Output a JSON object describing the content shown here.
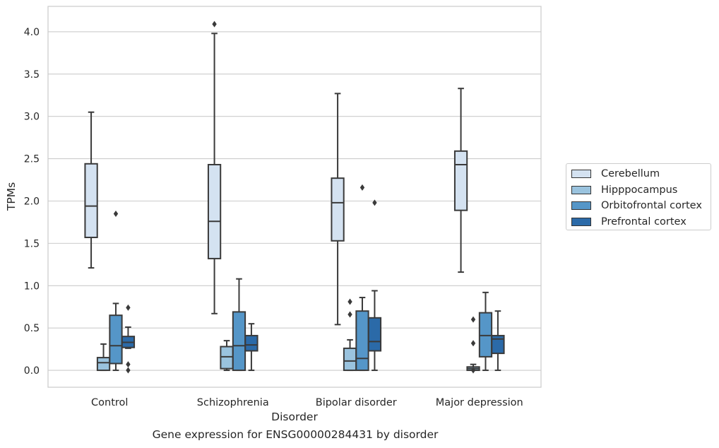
{
  "footer_title": "Gene expression for ENSG00000284431 by disorder",
  "chart_data": {
    "type": "box",
    "xlabel": "Disorder",
    "ylabel": "TPMs",
    "ylim": [
      -0.2,
      4.3
    ],
    "yticks": [
      "0.0",
      "0.5",
      "1.0",
      "1.5",
      "2.0",
      "2.5",
      "3.0",
      "3.5",
      "4.0"
    ],
    "grid": "horizontal",
    "legend_position": "right",
    "categories": [
      "Control",
      "Schizophrenia",
      "Bipolar disorder",
      "Major depression"
    ],
    "series": [
      {
        "name": "Cerebellum",
        "color": "#d4e2f1",
        "boxes": [
          {
            "q1": 1.57,
            "median": 1.94,
            "q3": 2.44,
            "whisker_low": 1.21,
            "whisker_high": 3.05,
            "outliers": []
          },
          {
            "q1": 1.32,
            "median": 1.76,
            "q3": 2.43,
            "whisker_low": 0.67,
            "whisker_high": 3.98,
            "outliers": [
              4.09
            ]
          },
          {
            "q1": 1.53,
            "median": 1.98,
            "q3": 2.27,
            "whisker_low": 0.54,
            "whisker_high": 3.27,
            "outliers": []
          },
          {
            "q1": 1.89,
            "median": 2.43,
            "q3": 2.59,
            "whisker_low": 1.16,
            "whisker_high": 3.33,
            "outliers": []
          }
        ]
      },
      {
        "name": "Hipppocampus",
        "color": "#9ac3de",
        "boxes": [
          {
            "q1": 0.0,
            "median": 0.09,
            "q3": 0.15,
            "whisker_low": 0.0,
            "whisker_high": 0.31,
            "outliers": []
          },
          {
            "q1": 0.02,
            "median": 0.16,
            "q3": 0.28,
            "whisker_low": 0.0,
            "whisker_high": 0.35,
            "outliers": []
          },
          {
            "q1": 0.0,
            "median": 0.11,
            "q3": 0.26,
            "whisker_low": 0.0,
            "whisker_high": 0.36,
            "outliers": [
              0.66,
              0.81
            ]
          },
          {
            "q1": 0.0,
            "median": 0.02,
            "q3": 0.04,
            "whisker_low": 0.0,
            "whisker_high": 0.07,
            "outliers": [
              0.0,
              0.32,
              0.6
            ]
          }
        ]
      },
      {
        "name": "Orbitofrontal cortex",
        "color": "#5596c8",
        "boxes": [
          {
            "q1": 0.08,
            "median": 0.29,
            "q3": 0.65,
            "whisker_low": 0.0,
            "whisker_high": 0.79,
            "outliers": [
              1.85
            ]
          },
          {
            "q1": 0.0,
            "median": 0.29,
            "q3": 0.69,
            "whisker_low": 0.0,
            "whisker_high": 1.08,
            "outliers": []
          },
          {
            "q1": 0.0,
            "median": 0.14,
            "q3": 0.7,
            "whisker_low": 0.0,
            "whisker_high": 0.86,
            "outliers": [
              2.16
            ]
          },
          {
            "q1": 0.16,
            "median": 0.41,
            "q3": 0.68,
            "whisker_low": 0.0,
            "whisker_high": 0.92,
            "outliers": []
          }
        ]
      },
      {
        "name": "Prefrontal cortex",
        "color": "#2b6aa8",
        "boxes": [
          {
            "q1": 0.27,
            "median": 0.33,
            "q3": 0.4,
            "whisker_low": 0.26,
            "whisker_high": 0.51,
            "outliers": [
              0.74,
              0.07,
              0.0
            ]
          },
          {
            "q1": 0.23,
            "median": 0.3,
            "q3": 0.41,
            "whisker_low": 0.0,
            "whisker_high": 0.55,
            "outliers": []
          },
          {
            "q1": 0.23,
            "median": 0.34,
            "q3": 0.62,
            "whisker_low": 0.0,
            "whisker_high": 0.94,
            "outliers": [
              1.98
            ]
          },
          {
            "q1": 0.2,
            "median": 0.37,
            "q3": 0.41,
            "whisker_low": 0.0,
            "whisker_high": 0.7,
            "outliers": []
          }
        ]
      }
    ]
  }
}
